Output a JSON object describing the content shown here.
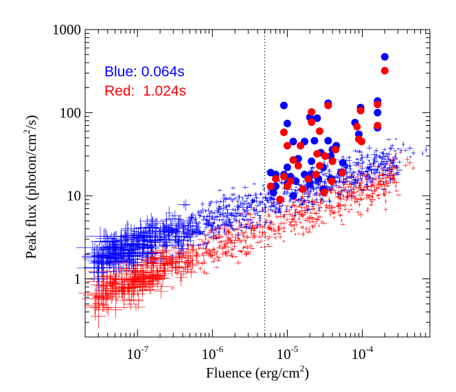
{
  "chart_data": {
    "type": "scatter",
    "title": "",
    "xlabel": "Fluence (erg/cm",
    "xlabel_sup": "2",
    "xlabel_end": ")",
    "ylabel": "Peak flux (photon/cm",
    "ylabel_sup": "2",
    "ylabel_end": "/s)",
    "x_scale": "log",
    "y_scale": "log",
    "xlim": [
      2e-08,
      0.0008
    ],
    "ylim": [
      0.2,
      1000
    ],
    "x_ticks": [
      {
        "value": 1e-07,
        "base": "10",
        "exp": "-7"
      },
      {
        "value": 1e-06,
        "base": "10",
        "exp": "-6"
      },
      {
        "value": 1e-05,
        "base": "10",
        "exp": "-5"
      },
      {
        "value": 0.0001,
        "base": "10",
        "exp": "-4"
      }
    ],
    "y_ticks": [
      {
        "value": 1,
        "label": "1"
      },
      {
        "value": 10,
        "label": "10"
      },
      {
        "value": 100,
        "label": "100"
      },
      {
        "value": 1000,
        "label": "1000"
      }
    ],
    "vline": {
      "x": 5e-06,
      "style": "dotted"
    },
    "legend": [
      {
        "label": "Blue: 0.064s",
        "color": "#0000ff"
      },
      {
        "label": "Red:  1.024s",
        "color": "#ff0000"
      }
    ],
    "legend_position": "top-left",
    "series": [
      {
        "name": "Blue: 0.064s",
        "color": "#0000ff",
        "marker": "circle",
        "points": [
          [
            0.0002,
            470
          ],
          [
            0.00016,
            138
          ],
          [
            9.5e-05,
            115
          ],
          [
            0.00016,
            100
          ],
          [
            8e-05,
            76
          ],
          [
            0.00016,
            66
          ],
          [
            9e-06,
            122
          ],
          [
            1e-05,
            74
          ],
          [
            3.5e-05,
            130
          ],
          [
            2e-05,
            88
          ],
          [
            2.5e-05,
            86
          ],
          [
            9e-05,
            55
          ],
          [
            1.2e-05,
            45
          ],
          [
            1.7e-05,
            45
          ],
          [
            2.3e-05,
            46
          ],
          [
            3.5e-05,
            46
          ],
          [
            4e-05,
            36
          ],
          [
            4.5e-05,
            40
          ],
          [
            2.8e-05,
            33
          ],
          [
            3.8e-05,
            30
          ],
          [
            1.4e-05,
            28
          ],
          [
            1.2e-05,
            27
          ],
          [
            2.1e-05,
            26
          ],
          [
            5.5e-05,
            25
          ],
          [
            1e-05,
            22
          ],
          [
            3e-05,
            22
          ],
          [
            6e-06,
            19
          ],
          [
            7e-06,
            18
          ],
          [
            9e-06,
            18
          ],
          [
            1.1e-05,
            17
          ],
          [
            1.7e-05,
            18
          ],
          [
            2.1e-05,
            18
          ],
          [
            2.6e-05,
            16
          ],
          [
            3.8e-05,
            16
          ],
          [
            5.2e-05,
            19
          ],
          [
            1.3e-05,
            15
          ],
          [
            7e-06,
            13
          ],
          [
            1e-05,
            14
          ],
          [
            3e-05,
            12
          ],
          [
            6.5e-06,
            11
          ],
          [
            1.2e-05,
            10
          ],
          [
            2e-05,
            14
          ]
        ]
      },
      {
        "name": "Red:  1.024s",
        "color": "#ff0000",
        "marker": "circle",
        "points": [
          [
            0.0002,
            320
          ],
          [
            0.00016,
            126
          ],
          [
            9.5e-05,
            106
          ],
          [
            2.1e-05,
            102
          ],
          [
            8.5e-05,
            68
          ],
          [
            0.00016,
            70
          ],
          [
            9e-06,
            58
          ],
          [
            2.7e-05,
            60
          ],
          [
            9e-05,
            48
          ],
          [
            9.8e-05,
            45
          ],
          [
            1e-05,
            40
          ],
          [
            1.5e-05,
            40
          ],
          [
            2.1e-05,
            77
          ],
          [
            3.5e-05,
            122
          ],
          [
            2.5e-05,
            32
          ],
          [
            4.4e-05,
            36
          ],
          [
            3.2e-05,
            30
          ],
          [
            1.2e-05,
            27
          ],
          [
            1.4e-05,
            23
          ],
          [
            2.7e-05,
            23
          ],
          [
            4e-05,
            26
          ],
          [
            5.4e-05,
            19
          ],
          [
            7e-06,
            16
          ],
          [
            9e-06,
            17
          ],
          [
            1.1e-05,
            15
          ],
          [
            1.9e-05,
            16
          ],
          [
            2.4e-05,
            18
          ],
          [
            3.9e-05,
            15
          ],
          [
            6e-06,
            13
          ],
          [
            1e-05,
            13
          ],
          [
            1.6e-05,
            12
          ],
          [
            3.1e-05,
            11
          ],
          [
            8e-06,
            9
          ]
        ]
      }
    ]
  }
}
